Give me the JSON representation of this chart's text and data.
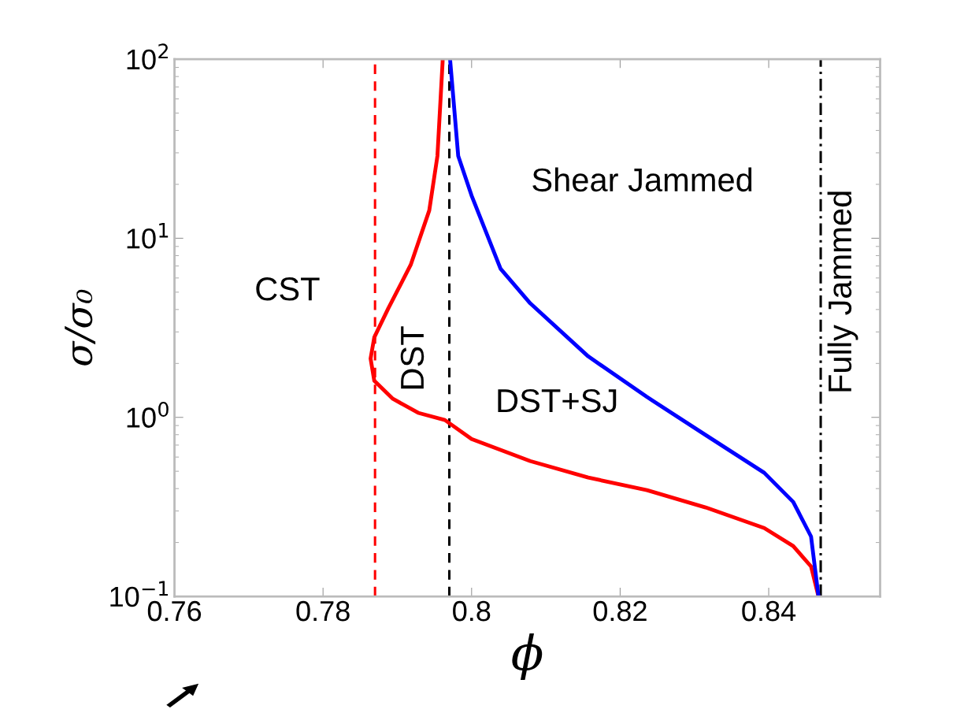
{
  "chart_data": {
    "type": "line",
    "xlabel": "ϕ",
    "ylabel": "σ/σ₀",
    "log": "y",
    "grid": false,
    "legend": false,
    "line_style": "solid",
    "marker": "none",
    "xlim": [
      0.76,
      0.855
    ],
    "xticks": [
      0.76,
      0.78,
      0.8,
      0.82,
      0.84
    ],
    "ylim": [
      0.1,
      100
    ],
    "yticks": [
      {
        "value": 0.1,
        "label": "10$^{−1}$"
      },
      {
        "value": 1,
        "label": "10$^{0}$"
      },
      {
        "value": 10,
        "label": "10$^{1}$"
      },
      {
        "value": 100,
        "label": "10$^{2}$"
      }
    ],
    "series": [
      {
        "color": "#ff0000",
        "x": [
          0.7961,
          0.7961,
          0.7954,
          0.7943,
          0.7918,
          0.7888,
          0.7869,
          0.7864,
          0.7869,
          0.7894,
          0.7928,
          0.7964,
          0.8,
          0.8079,
          0.8157,
          0.8236,
          0.8315,
          0.8394,
          0.8433,
          0.8457,
          0.8467
        ],
        "values": [
          100,
          97,
          28.8,
          14.3,
          7.1,
          4.07,
          2.8,
          2.13,
          1.6,
          1.27,
          1.06,
          0.966,
          0.757,
          0.57,
          0.461,
          0.392,
          0.314,
          0.241,
          0.191,
          0.147,
          0.1
        ]
      },
      {
        "color": "#0000ff",
        "x": [
          0.7971,
          0.7982,
          0.8,
          0.8039,
          0.8079,
          0.8157,
          0.8236,
          0.8315,
          0.8394,
          0.8433,
          0.8457,
          0.8467
        ],
        "values": [
          100,
          28.8,
          17.3,
          6.76,
          4.33,
          2.19,
          1.3,
          0.797,
          0.49,
          0.337,
          0.216,
          0.1
        ]
      }
    ],
    "ref_lines": [
      {
        "axis": "x",
        "value": 0.787,
        "color": "#ff0000",
        "line_style": "dashed"
      },
      {
        "axis": "x",
        "value": 0.797,
        "color": "#000000",
        "line_style": "dashed"
      },
      {
        "axis": "x",
        "value": 0.847,
        "color": "#000000",
        "line_style": "dashdot"
      }
    ],
    "annotations": [
      "Shear Jammed",
      "CST",
      "DST",
      "DST+SJ",
      "Fully Jammed"
    ]
  }
}
